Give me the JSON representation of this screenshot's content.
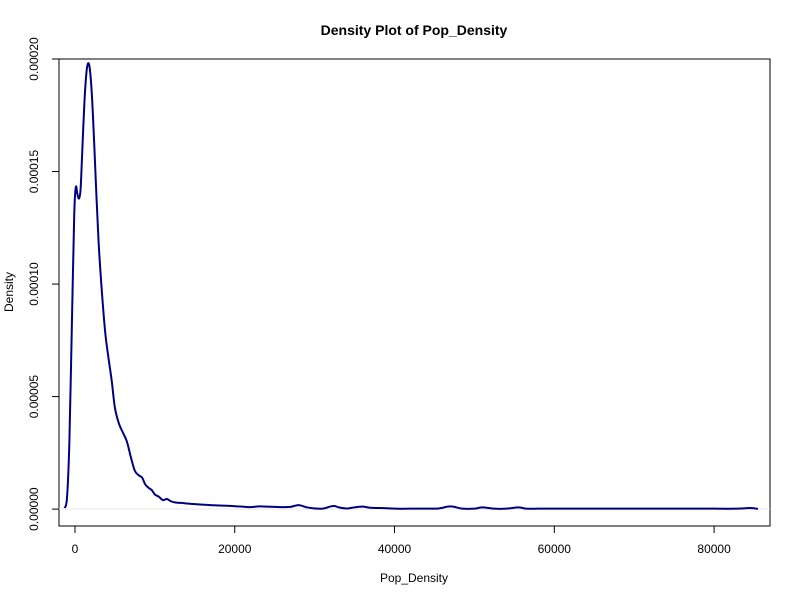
{
  "chart_data": {
    "type": "line",
    "title": "Density Plot of Pop_Density",
    "xlabel": "Pop_Density",
    "ylabel": "Density",
    "xlim": [
      -2000,
      87000
    ],
    "ylim": [
      -7.5e-06,
      0.0002
    ],
    "x_ticks": [
      0,
      20000,
      40000,
      60000,
      80000
    ],
    "x_tick_labels": [
      "0",
      "20000",
      "40000",
      "60000",
      "80000"
    ],
    "y_ticks": [
      0,
      5e-05,
      0.0001,
      0.00015,
      0.0002
    ],
    "y_tick_labels": [
      "0.00000",
      "0.00005",
      "0.00010",
      "0.00015",
      "0.00020"
    ],
    "grid": false,
    "legend": "none",
    "colors": {
      "line": "#000080",
      "baseline": "#e6e6e6",
      "axes": "#000000"
    },
    "series": [
      {
        "x": [
          -1300,
          -1000,
          -700,
          -400,
          -100,
          100,
          300,
          500,
          700,
          900,
          1200,
          1500,
          1800,
          2100,
          2400,
          2700,
          3000,
          3400,
          3800,
          4200,
          4600,
          5000,
          5500,
          6000,
          6500,
          7000,
          7500,
          8000,
          8400,
          8800,
          9200,
          9600,
          10000,
          10500,
          11000,
          11500,
          12000,
          12500,
          13000,
          13500,
          14000,
          15000,
          16000,
          17000,
          18000,
          19000,
          20000,
          21000,
          22000,
          23000,
          24000,
          25000,
          26000,
          27000,
          28000,
          29000,
          30000,
          31000,
          32000,
          32500,
          33000,
          34000,
          35000,
          36000,
          37000,
          38000,
          39000,
          40000,
          42000,
          44000,
          45500,
          47000,
          48500,
          50000,
          51000,
          52500,
          54000,
          55500,
          56500,
          58000,
          60000,
          65000,
          70000,
          75000,
          80000,
          83000,
          84500,
          85500
        ],
        "y": [
          5e-07,
          5e-06,
          3e-05,
          8e-05,
          0.00013,
          0.000143,
          0.00014,
          0.000138,
          0.000142,
          0.000158,
          0.000182,
          0.000196,
          0.000197,
          0.000185,
          0.000163,
          0.000138,
          0.000116,
          9.5e-05,
          7.8e-05,
          6.7e-05,
          5.7e-05,
          4.5e-05,
          3.8e-05,
          3.4e-05,
          3e-05,
          2.3e-05,
          1.7e-05,
          1.5e-05,
          1.4e-05,
          1.1e-05,
          9.5e-06,
          8.5e-06,
          6.5e-06,
          5.5e-06,
          4e-06,
          4.5e-06,
          3.5e-06,
          3e-06,
          2.8e-06,
          2.7e-06,
          2.5e-06,
          2.2e-06,
          2e-06,
          1.8e-06,
          1.6e-06,
          1.5e-06,
          1.3e-06,
          1.1e-06,
          9e-07,
          1.2e-06,
          1.1e-06,
          1e-06,
          9e-07,
          1e-06,
          1.8e-06,
          8e-07,
          3e-07,
          2e-07,
          1.2e-06,
          1.4e-06,
          8e-07,
          3e-07,
          8e-07,
          1.1e-06,
          6e-07,
          5e-07,
          4e-07,
          2e-07,
          2e-07,
          2e-07,
          3e-07,
          1.2e-06,
          2e-07,
          2e-07,
          8e-07,
          2e-07,
          2e-07,
          8e-07,
          2e-07,
          2e-07,
          2e-07,
          2e-07,
          2e-07,
          2e-07,
          2e-07,
          2e-07,
          5e-07,
          1e-07
        ]
      }
    ]
  }
}
